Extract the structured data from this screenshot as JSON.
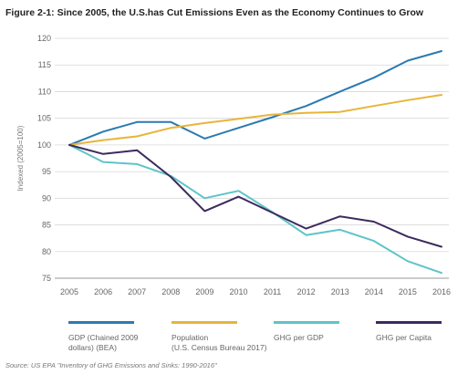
{
  "chart_data": {
    "type": "line",
    "title": "Figure 2-1: Since 2005, the U.S.has Cut Emissions Even as the Economy Continues to Grow",
    "ylabel": "Indexed (2005=100)",
    "xlabel": "",
    "ylim": [
      75,
      120
    ],
    "yticks": [
      75,
      80,
      85,
      90,
      95,
      100,
      105,
      110,
      115,
      120
    ],
    "x": [
      2005,
      2006,
      2007,
      2008,
      2009,
      2010,
      2011,
      2012,
      2013,
      2014,
      2015,
      2016
    ],
    "grid": "horizontal",
    "legend_position": "bottom",
    "series": [
      {
        "name": "GDP (Chained 2009 dollars) (BEA)",
        "name_lines": [
          "GDP (Chained 2009",
          "dollars) (BEA)"
        ],
        "color": "#2a7ab0",
        "values": [
          100,
          102.5,
          104.3,
          104.3,
          101.2,
          103.2,
          105.2,
          107.3,
          110.0,
          112.6,
          115.8,
          117.6
        ]
      },
      {
        "name": "Population (U.S. Census Bureau 2017)",
        "name_lines": [
          "Population",
          "(U.S. Census Bureau 2017)"
        ],
        "color": "#e8b53a",
        "values": [
          100,
          100.9,
          101.6,
          103.2,
          104.1,
          104.9,
          105.7,
          106.0,
          106.2,
          107.3,
          108.4,
          109.4
        ]
      },
      {
        "name": "GHG per GDP",
        "name_lines": [
          "GHG per GDP"
        ],
        "color": "#5ec4c8",
        "values": [
          100,
          96.8,
          96.4,
          94.2,
          90.0,
          91.4,
          87.4,
          83.1,
          84.1,
          82.0,
          78.2,
          76.0
        ]
      },
      {
        "name": "GHG per Capita",
        "name_lines": [
          "GHG per Capita"
        ],
        "color": "#3d2a5e",
        "values": [
          100,
          98.3,
          99.0,
          94.0,
          87.6,
          90.3,
          87.3,
          84.3,
          86.6,
          85.6,
          82.8,
          80.9
        ]
      }
    ],
    "source": "Source: US EPA \"Inventory of GHG Emissions and Sinks: 1990-2016\""
  }
}
